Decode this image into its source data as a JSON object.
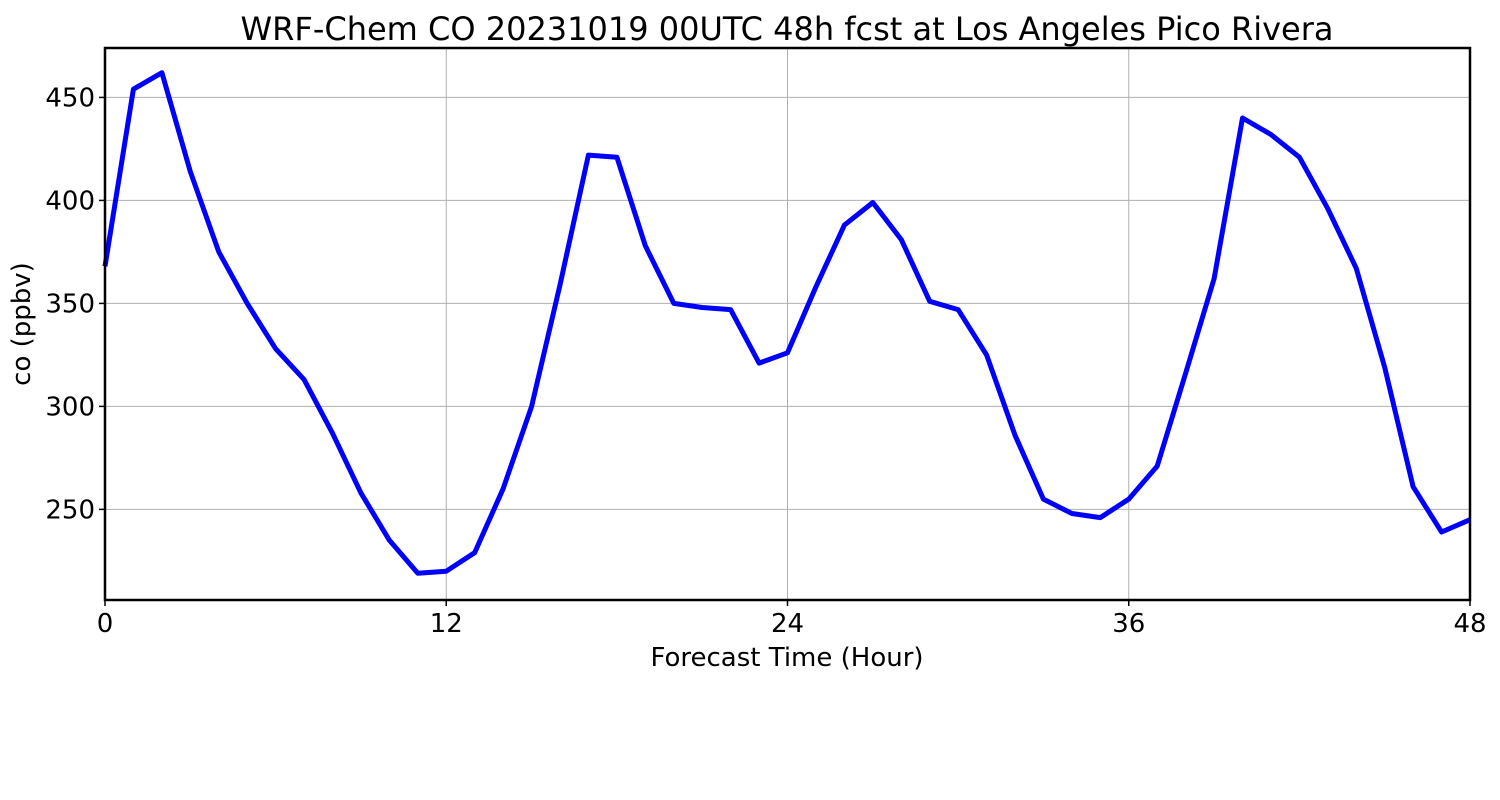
{
  "chart_data": {
    "type": "line",
    "title": "WRF-Chem CO  20231019 00UTC 48h fcst at Los Angeles Pico Rivera",
    "xlabel": "Forecast Time (Hour)",
    "ylabel": "co  (ppbv)",
    "xlim": [
      0,
      48
    ],
    "ylim": [
      206,
      474
    ],
    "xticks": [
      0,
      12,
      24,
      36,
      48
    ],
    "yticks": [
      250,
      300,
      350,
      400,
      450
    ],
    "grid": true,
    "line_color": "#0000ff",
    "x": [
      0,
      1,
      2,
      3,
      4,
      5,
      6,
      7,
      8,
      9,
      10,
      11,
      12,
      13,
      14,
      15,
      16,
      17,
      18,
      19,
      20,
      21,
      22,
      23,
      24,
      25,
      26,
      27,
      28,
      29,
      30,
      31,
      32,
      33,
      34,
      35,
      36,
      37,
      38,
      39,
      40,
      41,
      42,
      43,
      44,
      45,
      46,
      47,
      48
    ],
    "series": [
      {
        "values": [
          368,
          454,
          462,
          414,
          375,
          350,
          328,
          313,
          287,
          258,
          235,
          219,
          220,
          229,
          260,
          300,
          359,
          422,
          421,
          378,
          350,
          348,
          347,
          321,
          326,
          358,
          388,
          399,
          381,
          351,
          347,
          325,
          286,
          255,
          248,
          246,
          255,
          271,
          316,
          362,
          440,
          432,
          421,
          396,
          367,
          319,
          261,
          239,
          245
        ]
      }
    ]
  }
}
